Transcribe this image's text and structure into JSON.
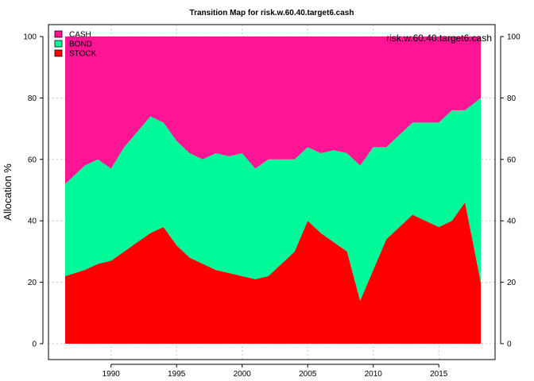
{
  "chart_data": {
    "type": "area",
    "title": "Transition Map for risk.w.60.40.target6.cash",
    "xlabel": "",
    "ylabel": "Allocation %",
    "corner_label": "risk.w.60.40.target6.cash",
    "stacked": true,
    "x_range": [
      1986.5,
      2018.2
    ],
    "ylim": [
      0,
      100
    ],
    "x_ticks": [
      1990,
      1995,
      2000,
      2005,
      2010,
      2015
    ],
    "y_ticks": [
      0,
      20,
      40,
      60,
      80,
      100
    ],
    "grid": true,
    "legend_position": "top-left",
    "x": [
      1987,
      1988,
      1989,
      1990,
      1991,
      1992,
      1993,
      1994,
      1995,
      1996,
      1997,
      1998,
      1999,
      2000,
      2001,
      2002,
      2003,
      2004,
      2005,
      2006,
      2007,
      2008,
      2009,
      2010,
      2011,
      2012,
      2013,
      2014,
      2015,
      2016,
      2017,
      2018
    ],
    "series": [
      {
        "name": "STOCK",
        "color": "#ff0000",
        "values": [
          22,
          24,
          26,
          27,
          30,
          33,
          36,
          38,
          32,
          28,
          26,
          24,
          23,
          22,
          21,
          22,
          26,
          30,
          40,
          36,
          33,
          30,
          14,
          24,
          34,
          38,
          42,
          40,
          38,
          40,
          46,
          20
        ]
      },
      {
        "name": "BOND",
        "color": "#00fa9a",
        "values": [
          30,
          34,
          34,
          30,
          34,
          36,
          38,
          34,
          34,
          34,
          34,
          38,
          38,
          40,
          36,
          38,
          34,
          30,
          24,
          26,
          30,
          32,
          44,
          40,
          30,
          30,
          30,
          32,
          34,
          36,
          30,
          60
        ]
      },
      {
        "name": "CASH",
        "color": "#ff1493",
        "values": [
          48,
          42,
          40,
          43,
          36,
          31,
          26,
          28,
          34,
          38,
          40,
          38,
          39,
          38,
          43,
          40,
          40,
          40,
          36,
          38,
          37,
          38,
          42,
          36,
          36,
          32,
          28,
          28,
          28,
          24,
          24,
          20
        ]
      }
    ]
  }
}
